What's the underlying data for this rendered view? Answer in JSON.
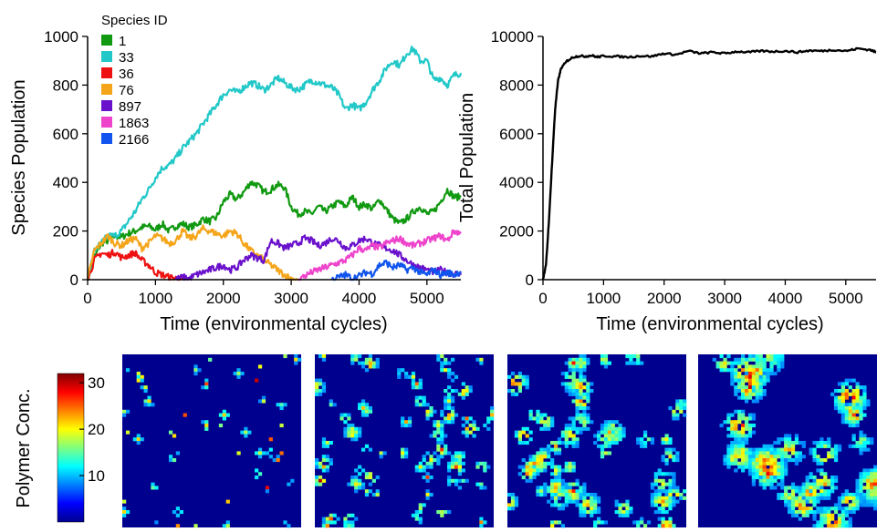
{
  "chart_data": [
    {
      "type": "line",
      "title": "",
      "xlabel": "Time (environmental cycles)",
      "ylabel": "Species Population",
      "xlim": [
        0,
        5500
      ],
      "ylim": [
        0,
        1000
      ],
      "xticks": [
        0,
        1000,
        2000,
        3000,
        4000,
        5000
      ],
      "yticks": [
        0,
        200,
        400,
        600,
        800,
        1000
      ],
      "grid": false,
      "legend": {
        "title": "Species ID",
        "placement": "top-left"
      },
      "series": [
        {
          "name": "1",
          "color": "#119911",
          "x": [
            0,
            100,
            200,
            300,
            400,
            500,
            600,
            700,
            800,
            900,
            1000,
            1100,
            1200,
            1300,
            1400,
            1500,
            1600,
            1700,
            1800,
            1900,
            2000,
            2100,
            2200,
            2300,
            2400,
            2500,
            2600,
            2700,
            2800,
            2900,
            3000,
            3100,
            3200,
            3300,
            3400,
            3500,
            3600,
            3700,
            3800,
            3900,
            4000,
            4100,
            4200,
            4300,
            4400,
            4500,
            4600,
            4700,
            4800,
            4900,
            5000,
            5100,
            5200,
            5300,
            5400,
            5500
          ],
          "y": [
            0,
            90,
            150,
            160,
            180,
            175,
            190,
            200,
            215,
            220,
            205,
            230,
            200,
            220,
            230,
            215,
            225,
            250,
            240,
            255,
            320,
            350,
            330,
            360,
            400,
            390,
            360,
            370,
            390,
            380,
            300,
            270,
            280,
            270,
            300,
            280,
            300,
            320,
            300,
            340,
            300,
            310,
            290,
            330,
            290,
            250,
            230,
            250,
            280,
            300,
            270,
            280,
            320,
            370,
            340,
            340
          ]
        },
        {
          "name": "33",
          "color": "#22c8c8",
          "x": [
            0,
            100,
            200,
            300,
            400,
            500,
            600,
            700,
            800,
            900,
            1000,
            1100,
            1200,
            1300,
            1400,
            1500,
            1600,
            1700,
            1800,
            1900,
            2000,
            2100,
            2200,
            2300,
            2400,
            2500,
            2600,
            2700,
            2800,
            2900,
            3000,
            3100,
            3200,
            3300,
            3400,
            3500,
            3600,
            3700,
            3800,
            3900,
            4000,
            4100,
            4200,
            4300,
            4400,
            4500,
            4600,
            4700,
            4800,
            4900,
            5000,
            5100,
            5200,
            5300,
            5400,
            5500
          ],
          "y": [
            0,
            120,
            150,
            180,
            180,
            200,
            240,
            280,
            330,
            370,
            420,
            460,
            470,
            500,
            540,
            570,
            600,
            640,
            680,
            720,
            760,
            780,
            770,
            790,
            810,
            800,
            780,
            800,
            830,
            810,
            790,
            780,
            800,
            820,
            810,
            800,
            790,
            760,
            700,
            720,
            700,
            730,
            780,
            820,
            870,
            900,
            880,
            930,
            950,
            900,
            900,
            820,
            830,
            800,
            840,
            850
          ]
        },
        {
          "name": "36",
          "color": "#ee1111",
          "x": [
            0,
            100,
            200,
            300,
            400,
            500,
            600,
            700,
            800,
            900,
            1000,
            1100,
            1200,
            1300,
            1400
          ],
          "y": [
            0,
            80,
            110,
            100,
            115,
            90,
            100,
            110,
            80,
            60,
            30,
            20,
            10,
            5,
            0
          ]
        },
        {
          "name": "76",
          "color": "#f5a51a",
          "x": [
            0,
            100,
            200,
            300,
            400,
            500,
            600,
            700,
            800,
            900,
            1000,
            1100,
            1200,
            1300,
            1400,
            1500,
            1600,
            1700,
            1800,
            1900,
            2000,
            2100,
            2200,
            2300,
            2400,
            2500,
            2600,
            2700,
            2800,
            2900,
            3000,
            3100
          ],
          "y": [
            0,
            120,
            150,
            180,
            150,
            140,
            160,
            170,
            130,
            150,
            180,
            170,
            150,
            160,
            200,
            170,
            180,
            210,
            200,
            190,
            180,
            200,
            190,
            150,
            120,
            100,
            80,
            60,
            40,
            20,
            5,
            0
          ]
        },
        {
          "name": "897",
          "color": "#6a11cc",
          "x": [
            1300,
            1400,
            1500,
            1600,
            1700,
            1800,
            1900,
            2000,
            2100,
            2200,
            2300,
            2400,
            2500,
            2600,
            2700,
            2800,
            2900,
            3000,
            3100,
            3200,
            3300,
            3400,
            3500,
            3600,
            3700,
            3800,
            3900,
            4000,
            4100,
            4200,
            4300,
            4400,
            4500,
            4600,
            4700,
            4800,
            4900,
            5000,
            5100,
            5200,
            5300,
            5400,
            5500
          ],
          "y": [
            0,
            10,
            5,
            20,
            30,
            40,
            50,
            60,
            40,
            50,
            80,
            100,
            90,
            80,
            160,
            150,
            130,
            140,
            150,
            170,
            160,
            140,
            150,
            170,
            160,
            130,
            140,
            160,
            170,
            150,
            140,
            130,
            120,
            100,
            80,
            60,
            50,
            40,
            30,
            40,
            30,
            25,
            20
          ]
        },
        {
          "name": "1863",
          "color": "#ee44cc",
          "x": [
            3100,
            3200,
            3300,
            3400,
            3500,
            3600,
            3700,
            3800,
            3900,
            4000,
            4100,
            4200,
            4300,
            4400,
            4500,
            4600,
            4700,
            4800,
            4900,
            5000,
            5100,
            5200,
            5300,
            5400,
            5500
          ],
          "y": [
            0,
            15,
            30,
            40,
            50,
            60,
            70,
            80,
            100,
            130,
            120,
            140,
            130,
            150,
            160,
            170,
            150,
            140,
            150,
            160,
            170,
            180,
            160,
            200,
            190
          ]
        },
        {
          "name": "2166",
          "color": "#1155ee",
          "x": [
            3600,
            3700,
            3800,
            3900,
            4000,
            4100,
            4200,
            4300,
            4400,
            4500,
            4600,
            4700,
            4800,
            4900,
            5000,
            5100,
            5200,
            5300,
            5400,
            5500
          ],
          "y": [
            0,
            10,
            20,
            5,
            15,
            30,
            25,
            60,
            70,
            50,
            60,
            40,
            50,
            30,
            20,
            40,
            20,
            30,
            20,
            35
          ]
        }
      ]
    },
    {
      "type": "line",
      "title": "",
      "xlabel": "Time (environmental cycles)",
      "ylabel": "Total Population",
      "xlim": [
        0,
        5500
      ],
      "ylim": [
        0,
        10000
      ],
      "xticks": [
        0,
        1000,
        2000,
        3000,
        4000,
        5000
      ],
      "yticks": [
        0,
        2000,
        4000,
        6000,
        8000,
        10000
      ],
      "grid": false,
      "series": [
        {
          "name": "",
          "color": "#000000",
          "x": [
            0,
            50,
            100,
            150,
            200,
            250,
            300,
            400,
            500,
            600,
            700,
            800,
            900,
            1000,
            1200,
            1400,
            1600,
            1800,
            2000,
            2200,
            2400,
            2600,
            2800,
            3000,
            3200,
            3400,
            3600,
            3800,
            4000,
            4200,
            4400,
            4600,
            4800,
            5000,
            5200,
            5400,
            5500
          ],
          "y": [
            0,
            600,
            2500,
            4800,
            7000,
            8200,
            8700,
            9000,
            9150,
            9200,
            9180,
            9220,
            9150,
            9200,
            9180,
            9150,
            9200,
            9180,
            9300,
            9250,
            9400,
            9300,
            9350,
            9300,
            9380,
            9350,
            9400,
            9380,
            9400,
            9350,
            9420,
            9400,
            9450,
            9400,
            9500,
            9450,
            9350
          ]
        }
      ]
    },
    {
      "type": "heatmap",
      "colorbar": {
        "label": "Polymer Conc.",
        "ticks": [
          10,
          20,
          30
        ],
        "range": [
          0,
          32
        ],
        "colormap": "jet"
      },
      "panels": 4,
      "cluster_spread": [
        0.6,
        1.0,
        1.5,
        2.6
      ]
    }
  ]
}
